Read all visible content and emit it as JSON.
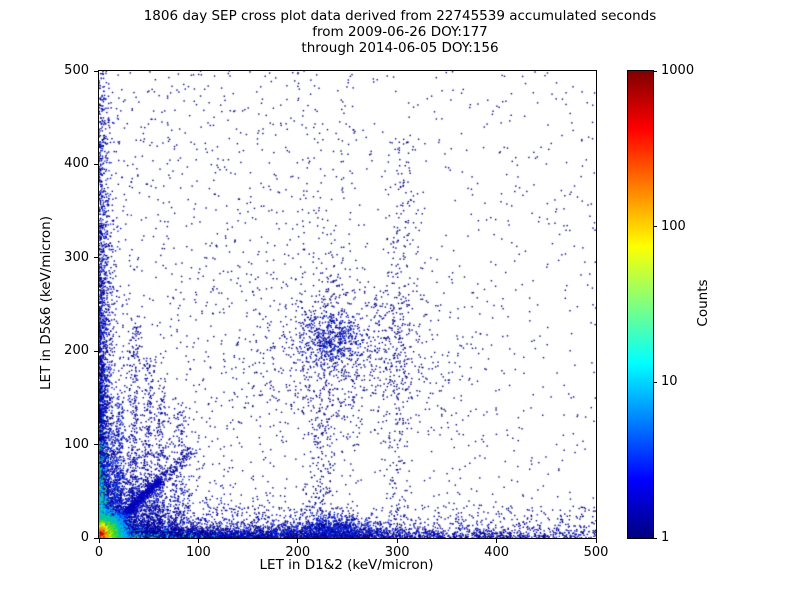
{
  "title": {
    "line1": "1806 day SEP cross plot data derived from 22745539 accumulated seconds",
    "line2": "from 2009-06-26 DOY:177",
    "line3": "through 2014-06-05 DOY:156"
  },
  "chart_data": {
    "type": "scatter",
    "title": "1806 day SEP cross plot data derived from 22745539 accumulated seconds from 2009-06-26 DOY:177 through 2014-06-05 DOY:156",
    "xlabel": "LET in D1&2 (keV/micron)",
    "ylabel": "LET in D5&6 (keV/micron)",
    "xlim": [
      0,
      500
    ],
    "ylim": [
      0,
      500
    ],
    "xticks": [
      0,
      100,
      200,
      300,
      400,
      500
    ],
    "yticks": [
      0,
      100,
      200,
      300,
      400,
      500
    ],
    "grid": false,
    "colorbar": {
      "label": "Counts",
      "scale": "log",
      "range": [
        1,
        1000
      ],
      "ticks": [
        1,
        10,
        100,
        1000
      ],
      "colormap": "jet",
      "jet_stops": [
        "#000080",
        "#0000ff",
        "#00ffff",
        "#ffff00",
        "#ff0000",
        "#800000"
      ]
    },
    "point_color_single_count": "#000080",
    "seed": 20140605,
    "clusters": [
      {
        "name": "uniform-sparse-full",
        "type": "uniform",
        "xmin": 0,
        "xmax": 500,
        "ymin": 0,
        "ymax": 500,
        "n": 1100,
        "color": "#000080"
      },
      {
        "name": "uniform-sparse-left",
        "type": "uniform",
        "xmin": 0,
        "xmax": 260,
        "ymin": 0,
        "ymax": 500,
        "n": 700,
        "color": "#000080"
      },
      {
        "name": "bottom-strip-sparse",
        "type": "uniform",
        "xmin": 0,
        "xmax": 500,
        "ymin": 0,
        "ymax": 35,
        "n": 500,
        "color": "#000080"
      },
      {
        "name": "left-column",
        "type": "expexp",
        "xscale": 5,
        "yscale": 175,
        "n": 3200,
        "colors": [
          [
            "#000080",
            0.55
          ],
          [
            "#0000cc",
            0.3
          ],
          [
            "#0033ff",
            0.15
          ]
        ]
      },
      {
        "name": "bottom-row",
        "type": "expexp",
        "xscale": 200,
        "yscale": 5,
        "n": 4200,
        "colors": [
          [
            "#000080",
            0.55
          ],
          [
            "#0000cc",
            0.3
          ],
          [
            "#0033ff",
            0.15
          ]
        ]
      },
      {
        "name": "origin-wedge",
        "type": "expexp",
        "xscale": 30,
        "yscale": 30,
        "n": 3000,
        "colors": [
          [
            "#000099",
            0.6
          ],
          [
            "#0022dd",
            0.4
          ]
        ]
      },
      {
        "name": "left-edge-hot-strip",
        "type": "expexp",
        "xscale": 3,
        "yscale": 28,
        "n": 900,
        "colors": [
          [
            "#00ccee",
            0.5
          ],
          [
            "#33cc44",
            0.3
          ],
          [
            "#0077ff",
            0.2
          ]
        ]
      },
      {
        "name": "bottom-edge-hot-strip",
        "type": "expexp",
        "xscale": 22,
        "yscale": 3,
        "n": 700,
        "colors": [
          [
            "#00ccee",
            0.5
          ],
          [
            "#33cc44",
            0.3
          ],
          [
            "#0077ff",
            0.2
          ]
        ]
      },
      {
        "name": "streak-x18",
        "type": "line",
        "x1": 18,
        "y1": 4,
        "x2": 21,
        "y2": 150,
        "jitter": 2.5,
        "pow": 1.5,
        "n": 260,
        "colors": [
          [
            "#0033ff",
            0.4
          ],
          [
            "#000099",
            0.6
          ]
        ]
      },
      {
        "name": "streak-x33",
        "type": "line",
        "x1": 33,
        "y1": 2,
        "x2": 37,
        "y2": 235,
        "jitter": 3,
        "pow": 1.6,
        "n": 330,
        "color": "#000099"
      },
      {
        "name": "streak-x47",
        "type": "line",
        "x1": 47,
        "y1": 2,
        "x2": 51,
        "y2": 195,
        "jitter": 3,
        "pow": 1.6,
        "n": 280,
        "color": "#000099"
      },
      {
        "name": "streak-x60",
        "type": "line",
        "x1": 59,
        "y1": 2,
        "x2": 64,
        "y2": 165,
        "jitter": 3.5,
        "pow": 1.6,
        "n": 240,
        "color": "#000099"
      },
      {
        "name": "streak-x78",
        "type": "line",
        "x1": 77,
        "y1": 2,
        "x2": 83,
        "y2": 140,
        "jitter": 4,
        "pow": 1.6,
        "n": 190,
        "color": "#000099"
      },
      {
        "name": "streak-x225",
        "type": "line",
        "x1": 220,
        "y1": 30,
        "x2": 236,
        "y2": 310,
        "jitter": 8,
        "pow": 1.2,
        "n": 260,
        "color": "#000080"
      },
      {
        "name": "streak-x300",
        "type": "line",
        "x1": 296,
        "y1": 20,
        "x2": 308,
        "y2": 430,
        "jitter": 7,
        "pow": 1.1,
        "n": 300,
        "color": "#000080"
      },
      {
        "name": "bottom-cluster-230",
        "type": "gauss",
        "cx": 233,
        "cy": 9,
        "sx": 26,
        "sy": 7,
        "n": 900,
        "colors": [
          [
            "#000099",
            0.5
          ],
          [
            "#0022dd",
            0.5
          ]
        ]
      },
      {
        "name": "mid-cluster-diffuse",
        "type": "gauss",
        "cx": 252,
        "cy": 200,
        "sx": 50,
        "sy": 45,
        "n": 850,
        "color": "#000080"
      },
      {
        "name": "mid-cluster-core",
        "type": "gauss",
        "cx": 237,
        "cy": 213,
        "sx": 17,
        "sy": 15,
        "n": 420,
        "colors": [
          [
            "#000099",
            0.6
          ],
          [
            "#0022dd",
            0.4
          ]
        ]
      },
      {
        "name": "diagonal-tail",
        "type": "line",
        "x1": 60,
        "y1": 60,
        "x2": 95,
        "y2": 95,
        "jitter": 4,
        "pow": 1,
        "n": 120,
        "color": "#000099"
      },
      {
        "name": "diagonal-streak",
        "type": "line",
        "x1": 1,
        "y1": 1,
        "x2": 62,
        "y2": 62,
        "jitter": 2.6,
        "pow": 1.4,
        "n": 1300,
        "stops": [
          {
            "t": 0.16,
            "color": "#00e0ee"
          },
          {
            "t": 0.38,
            "color": "#0077ff"
          },
          {
            "t": 1,
            "color": "#0000bb"
          }
        ]
      },
      {
        "name": "origin-hot-core",
        "type": "radial",
        "cx": 2,
        "cy": 4,
        "sigma": 12,
        "n": 5200,
        "stops": [
          {
            "r": 3,
            "color": "#bb0000"
          },
          {
            "r": 5.5,
            "color": "#ee3300"
          },
          {
            "r": 8.5,
            "color": "#ff9900"
          },
          {
            "r": 12,
            "color": "#ffee00"
          },
          {
            "r": 17,
            "color": "#66dd00"
          },
          {
            "r": 23,
            "color": "#00cc99"
          },
          {
            "r": 32,
            "color": "#00aaff"
          },
          {
            "r": 46,
            "color": "#0044ff"
          },
          {
            "r": 9999,
            "color": "#000099"
          }
        ]
      }
    ]
  }
}
